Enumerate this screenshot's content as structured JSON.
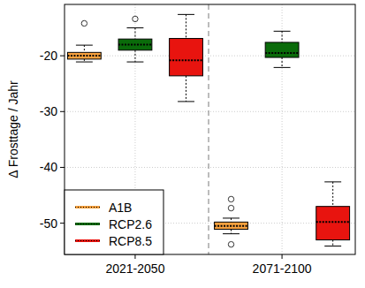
{
  "chart_data": {
    "type": "boxplot",
    "y_label": "Δ Frosttage / Jahr",
    "categories": [
      "2021-2050",
      "2071-2100"
    ],
    "ylim": [
      -55.6,
      -10.8
    ],
    "yticks": [
      -50,
      -40,
      -30,
      -20
    ],
    "grid": true,
    "legend": "bottom-left",
    "series": [
      {
        "name": "A1B",
        "color": "#f7a13e",
        "min": [
          -21.1,
          -51.9
        ],
        "q1": [
          -20.6,
          -51.1
        ],
        "median": [
          -20.0,
          -50.5
        ],
        "q3": [
          -19.4,
          -49.8
        ],
        "max": [
          -18.1,
          -49.1
        ],
        "outliers": [
          [
            -14.2
          ],
          [
            -45.7,
            -47.3,
            -53.8
          ]
        ]
      },
      {
        "name": "RCP2.6",
        "color": "#0a6b0a",
        "min": [
          -21.1,
          -22.1
        ],
        "q1": [
          -19.0,
          -20.3
        ],
        "median": [
          -18.0,
          -19.5
        ],
        "q3": [
          -17.0,
          -17.6
        ],
        "max": [
          -15.0,
          -15.6
        ],
        "outliers": [
          [
            -13.4
          ],
          []
        ]
      },
      {
        "name": "RCP8.5",
        "color": "#e8140f",
        "min": [
          -28.2,
          -54.1
        ],
        "q1": [
          -23.6,
          -53.0
        ],
        "median": [
          -20.8,
          -49.8
        ],
        "q3": [
          -16.9,
          -47.0
        ],
        "max": [
          -12.6,
          -42.6
        ],
        "outliers": [
          [],
          []
        ]
      }
    ]
  }
}
